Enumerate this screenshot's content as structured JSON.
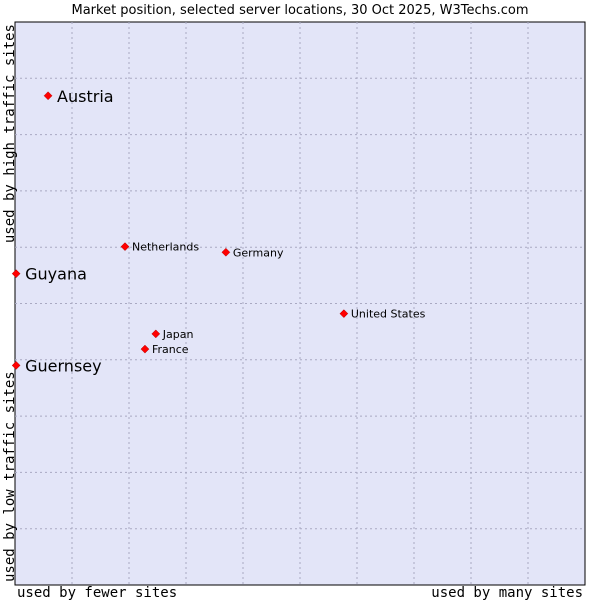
{
  "chart_data": {
    "type": "scatter",
    "title": "Market position, selected server locations, 30 Oct 2025, W3Techs.com",
    "xlabel_left": "used by fewer sites",
    "xlabel_right": "used by many sites",
    "ylabel_top": "used by high traffic sites",
    "ylabel_bottom": "used by low traffic sites",
    "xlim": [
      0,
      10
    ],
    "ylim": [
      0,
      10
    ],
    "grid": true,
    "colors": {
      "plot_bg": "#e3e5f8",
      "grid": "#a9a9c2",
      "point": "#ff0000",
      "axis": "#000000"
    },
    "points": [
      {
        "name": "Austria",
        "x": 0.58,
        "y": 8.69,
        "emphasis": true
      },
      {
        "name": "Guyana",
        "x": 0.02,
        "y": 5.53,
        "emphasis": true
      },
      {
        "name": "Guernsey",
        "x": 0.02,
        "y": 3.9,
        "emphasis": true
      },
      {
        "name": "Netherlands",
        "x": 1.93,
        "y": 6.01,
        "emphasis": false
      },
      {
        "name": "Germany",
        "x": 3.7,
        "y": 5.91,
        "emphasis": false
      },
      {
        "name": "United States",
        "x": 5.77,
        "y": 4.82,
        "emphasis": false
      },
      {
        "name": "Japan",
        "x": 2.47,
        "y": 4.46,
        "emphasis": false
      },
      {
        "name": "France",
        "x": 2.28,
        "y": 4.19,
        "emphasis": false
      }
    ]
  }
}
